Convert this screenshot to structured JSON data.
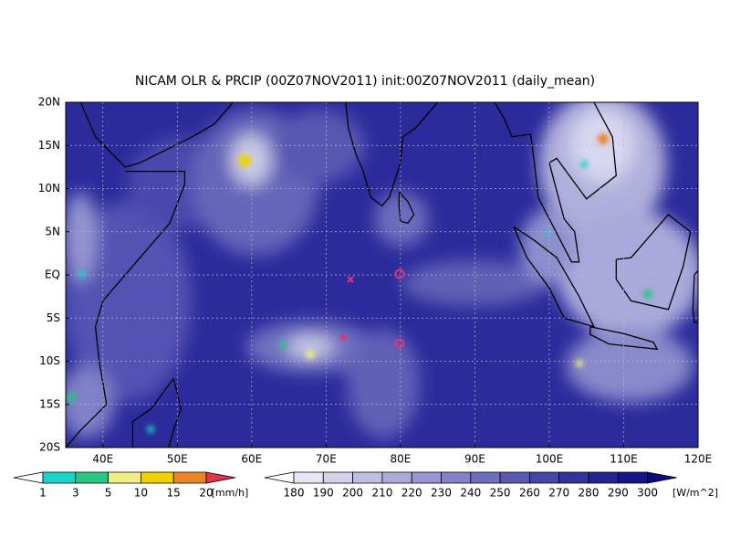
{
  "title": "NICAM OLR & PRCIP (00Z07NOV2011) init:00Z07NOV2011 (daily_mean)",
  "lat_labels": [
    "20N",
    "15N",
    "10N",
    "5N",
    "EQ",
    "5S",
    "10S",
    "15S",
    "20S"
  ],
  "lon_labels": [
    "40E",
    "50E",
    "60E",
    "70E",
    "80E",
    "90E",
    "100E",
    "110E",
    "120E"
  ],
  "precip_bar": {
    "colors": [
      "#ffffff",
      "#19d4c8",
      "#28c882",
      "#f0f080",
      "#f0d200",
      "#f08228",
      "#e6324b"
    ],
    "labels": [
      1,
      3,
      5,
      10,
      15,
      20
    ],
    "unit": "[mm/h]"
  },
  "olr_bar": {
    "colors": [
      "#ffffff",
      "#e6e6f5",
      "#d2d2eb",
      "#bebee6",
      "#aaaadc",
      "#9696d2",
      "#8282c8",
      "#6e6ebe",
      "#5a5ab4",
      "#4646aa",
      "#3232a0",
      "#232396",
      "#14148c",
      "#0a0a80"
    ],
    "labels": [
      180,
      190,
      200,
      210,
      220,
      230,
      240,
      250,
      260,
      270,
      280,
      290,
      300
    ],
    "unit": "[W/m^2]"
  }
}
